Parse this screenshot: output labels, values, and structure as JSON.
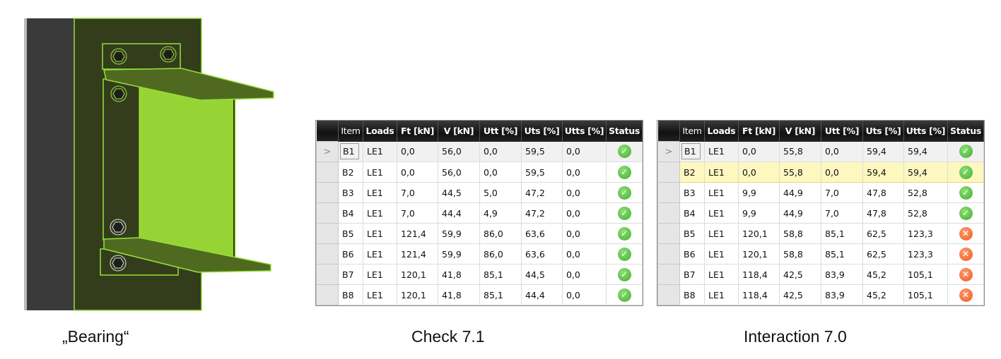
{
  "captions": {
    "bearing": "„Bearing“",
    "check": "Check 7.1",
    "interaction": "Interaction 7.0"
  },
  "colors": {
    "member_green": "#96d335",
    "dark_plate": "#333d1c",
    "ok": "#3fae2a",
    "error": "#ec5a24",
    "selected_row": "#fdf7c0"
  },
  "columns": [
    "Item",
    "Loads",
    "Ft [kN]",
    "V [kN]",
    "Utt [%]",
    "Uts [%]",
    "Utts [%]",
    "Status"
  ],
  "tables": {
    "check": {
      "current_row_marker": ">",
      "rows": [
        {
          "item": "B1",
          "loads": "LE1",
          "ft": "0,0",
          "v": "56,0",
          "utt": "0,0",
          "uts": "59,5",
          "utts": "0,0",
          "status": "ok"
        },
        {
          "item": "B2",
          "loads": "LE1",
          "ft": "0,0",
          "v": "56,0",
          "utt": "0,0",
          "uts": "59,5",
          "utts": "0,0",
          "status": "ok"
        },
        {
          "item": "B3",
          "loads": "LE1",
          "ft": "7,0",
          "v": "44,5",
          "utt": "5,0",
          "uts": "47,2",
          "utts": "0,0",
          "status": "ok"
        },
        {
          "item": "B4",
          "loads": "LE1",
          "ft": "7,0",
          "v": "44,4",
          "utt": "4,9",
          "uts": "47,2",
          "utts": "0,0",
          "status": "ok"
        },
        {
          "item": "B5",
          "loads": "LE1",
          "ft": "121,4",
          "v": "59,9",
          "utt": "86,0",
          "uts": "63,6",
          "utts": "0,0",
          "status": "ok"
        },
        {
          "item": "B6",
          "loads": "LE1",
          "ft": "121,4",
          "v": "59,9",
          "utt": "86,0",
          "uts": "63,6",
          "utts": "0,0",
          "status": "ok"
        },
        {
          "item": "B7",
          "loads": "LE1",
          "ft": "120,1",
          "v": "41,8",
          "utt": "85,1",
          "uts": "44,5",
          "utts": "0,0",
          "status": "ok"
        },
        {
          "item": "B8",
          "loads": "LE1",
          "ft": "120,1",
          "v": "41,8",
          "utt": "85,1",
          "uts": "44,4",
          "utts": "0,0",
          "status": "ok"
        }
      ]
    },
    "interaction": {
      "current_row_marker": ">",
      "selected_item": "B2",
      "rows": [
        {
          "item": "B1",
          "loads": "LE1",
          "ft": "0,0",
          "v": "55,8",
          "utt": "0,0",
          "uts": "59,4",
          "utts": "59,4",
          "status": "ok"
        },
        {
          "item": "B2",
          "loads": "LE1",
          "ft": "0,0",
          "v": "55,8",
          "utt": "0,0",
          "uts": "59,4",
          "utts": "59,4",
          "status": "ok"
        },
        {
          "item": "B3",
          "loads": "LE1",
          "ft": "9,9",
          "v": "44,9",
          "utt": "7,0",
          "uts": "47,8",
          "utts": "52,8",
          "status": "ok"
        },
        {
          "item": "B4",
          "loads": "LE1",
          "ft": "9,9",
          "v": "44,9",
          "utt": "7,0",
          "uts": "47,8",
          "utts": "52,8",
          "status": "ok"
        },
        {
          "item": "B5",
          "loads": "LE1",
          "ft": "120,1",
          "v": "58,8",
          "utt": "85,1",
          "uts": "62,5",
          "utts": "123,3",
          "status": "error"
        },
        {
          "item": "B6",
          "loads": "LE1",
          "ft": "120,1",
          "v": "58,8",
          "utt": "85,1",
          "uts": "62,5",
          "utts": "123,3",
          "status": "error"
        },
        {
          "item": "B7",
          "loads": "LE1",
          "ft": "118,4",
          "v": "42,5",
          "utt": "83,9",
          "uts": "45,2",
          "utts": "105,1",
          "status": "error"
        },
        {
          "item": "B8",
          "loads": "LE1",
          "ft": "118,4",
          "v": "42,5",
          "utt": "83,9",
          "uts": "45,2",
          "utts": "105,1",
          "status": "error"
        }
      ]
    }
  }
}
